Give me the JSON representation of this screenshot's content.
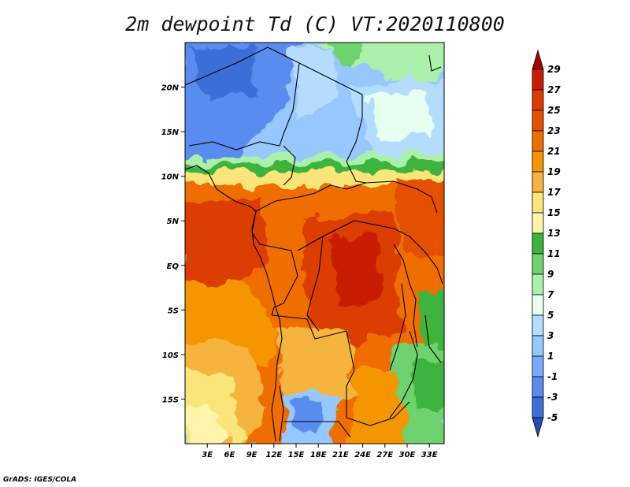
{
  "map": {
    "title": "2m dewpoint Td (C) VT:2020110800",
    "lat_ticks": [
      {
        "label": "20N",
        "value": 20
      },
      {
        "label": "15N",
        "value": 15
      },
      {
        "label": "10N",
        "value": 10
      },
      {
        "label": "5N",
        "value": 5
      },
      {
        "label": "EQ",
        "value": 0
      },
      {
        "label": "5S",
        "value": -5
      },
      {
        "label": "10S",
        "value": -10
      },
      {
        "label": "15S",
        "value": -15
      }
    ],
    "lon_ticks": [
      {
        "label": "3E",
        "value": 3
      },
      {
        "label": "6E",
        "value": 6
      },
      {
        "label": "9E",
        "value": 9
      },
      {
        "label": "12E",
        "value": 12
      },
      {
        "label": "15E",
        "value": 15
      },
      {
        "label": "18E",
        "value": 18
      },
      {
        "label": "21E",
        "value": 21
      },
      {
        "label": "24E",
        "value": 24
      },
      {
        "label": "27E",
        "value": 27
      },
      {
        "label": "30E",
        "value": 30
      },
      {
        "label": "33E",
        "value": 33
      }
    ],
    "lat_range": [
      -20,
      25
    ],
    "lon_range": [
      0,
      35
    ]
  },
  "colorbar": {
    "labels": [
      "29",
      "27",
      "25",
      "23",
      "21",
      "19",
      "17",
      "15",
      "13",
      "11",
      "9",
      "7",
      "5",
      "3",
      "1",
      "-1",
      "-3",
      "-5"
    ],
    "colors": [
      "#a50000",
      "#c81e00",
      "#dc3c00",
      "#e45000",
      "#f06e00",
      "#f59600",
      "#f5b43c",
      "#fae678",
      "#fff5aa",
      "#3cb43c",
      "#6ed26e",
      "#aaf0aa",
      "#e6fff0",
      "#b4dcff",
      "#96c8ff",
      "#78aaff",
      "#5a8cf0",
      "#3c6ed7",
      "#1e50b4"
    ]
  },
  "credit": "GrADS: IGES/COLA"
}
